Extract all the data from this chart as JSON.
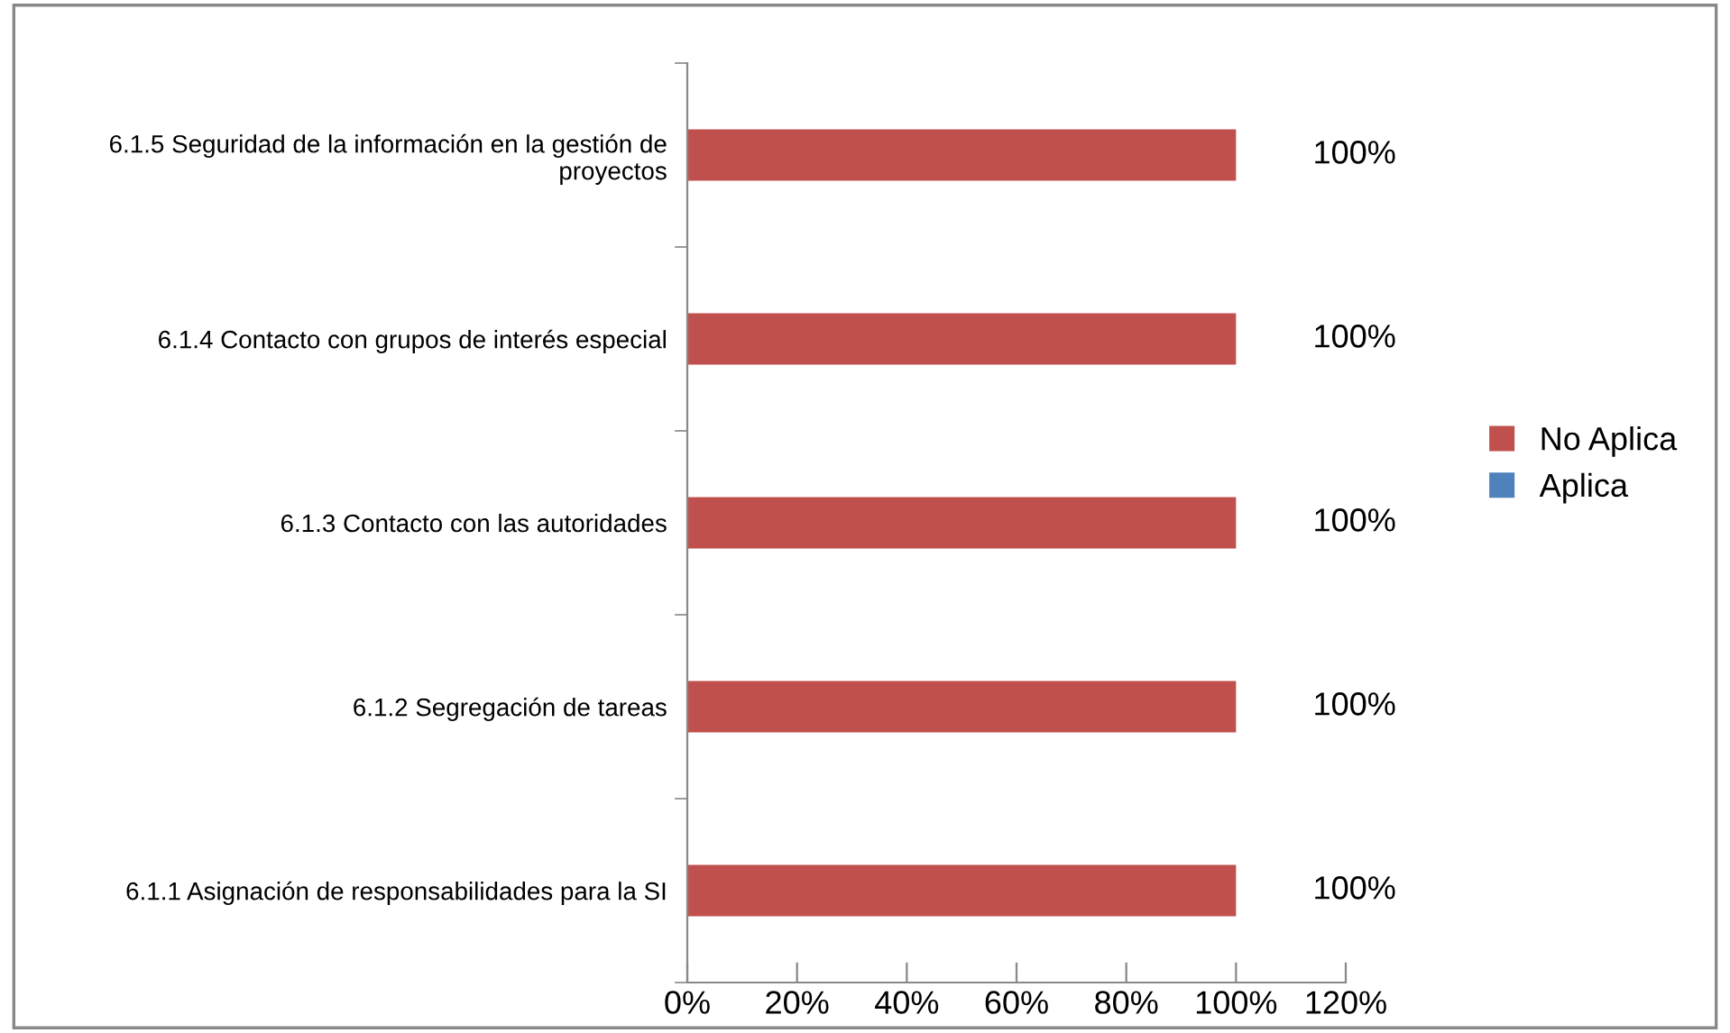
{
  "chart_data": {
    "type": "bar",
    "orientation": "horizontal",
    "categories": [
      "6.1.5 Seguridad de la información en la gestión de proyectos",
      "6.1.4 Contacto con grupos de interés especial",
      "6.1.3 Contacto con las autoridades",
      "6.1.2 Segregación de tareas",
      "6.1.1 Asignación de responsabilidades para la SI"
    ],
    "series": [
      {
        "name": "Aplica",
        "color": "#4f81bd",
        "values": [
          0,
          0,
          0,
          0,
          0
        ]
      },
      {
        "name": "No Aplica",
        "color": "#c0504d",
        "values": [
          100,
          100,
          100,
          100,
          100
        ],
        "value_labels": [
          "100%",
          "100%",
          "100%",
          "100%",
          "100%"
        ]
      }
    ],
    "xlim": [
      0,
      120
    ],
    "xticks": [
      {
        "value": 0,
        "label": "0%"
      },
      {
        "value": 20,
        "label": "20%"
      },
      {
        "value": 40,
        "label": "40%"
      },
      {
        "value": 60,
        "label": "60%"
      },
      {
        "value": 80,
        "label": "80%"
      },
      {
        "value": 100,
        "label": "100%"
      },
      {
        "value": 120,
        "label": "120%"
      }
    ],
    "grid": false,
    "legend": "right"
  }
}
